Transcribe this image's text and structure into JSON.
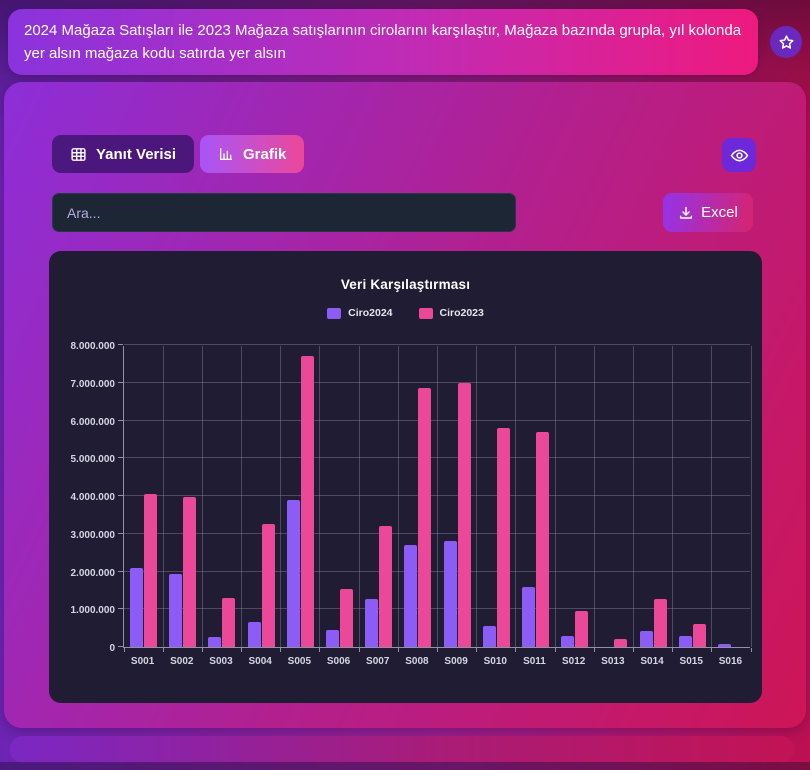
{
  "prompt_banner": {
    "text": "2024 Mağaza Satışları ile 2023 Mağaza satışlarının cirolarını karşılaştır, Mağaza bazında grupla, yıl kolonda yer alsın mağaza kodu satırda yer alsın"
  },
  "toolbar": {
    "tab_data_label": "Yanıt Verisi",
    "tab_chart_label": "Grafik",
    "search": {
      "placeholder": "Ara...",
      "value": ""
    },
    "excel_label": "Excel"
  },
  "icons": {
    "star": "star-outline-icon",
    "table": "table-grid-icon",
    "chart": "bar-chart-icon",
    "eye": "eye-icon",
    "download": "download-icon"
  },
  "colors": {
    "bar_2024": "#8b5cf6",
    "bar_2023": "#ec4899",
    "panel_bg": "#201c34",
    "accent_purple": "#a855f7",
    "accent_pink": "#ec4899"
  },
  "chart_data": {
    "type": "bar",
    "title": "Veri Karşılaştırması",
    "categories": [
      "S001",
      "S002",
      "S003",
      "S004",
      "S005",
      "S006",
      "S007",
      "S008",
      "S009",
      "S010",
      "S011",
      "S012",
      "S013",
      "S014",
      "S015",
      "S016"
    ],
    "series": [
      {
        "name": "Ciro2024",
        "color": "#8b5cf6",
        "values": [
          2100000,
          1930000,
          270000,
          650000,
          3900000,
          450000,
          1270000,
          2700000,
          2800000,
          550000,
          1600000,
          300000,
          0,
          420000,
          280000,
          70000
        ]
      },
      {
        "name": "Ciro2023",
        "color": "#ec4899",
        "values": [
          4050000,
          3970000,
          1300000,
          3250000,
          7700000,
          1550000,
          3200000,
          6850000,
          7000000,
          5800000,
          5700000,
          950000,
          200000,
          1280000,
          620000,
          0
        ]
      }
    ],
    "ylim": [
      0,
      8000000
    ],
    "ytick_step": 1000000,
    "ytick_labels": [
      "0",
      "1.000.000",
      "2.000.000",
      "3.000.000",
      "4.000.000",
      "5.000.000",
      "6.000.000",
      "7.000.000",
      "8.000.000"
    ],
    "grid": true,
    "legend_position": "top"
  }
}
